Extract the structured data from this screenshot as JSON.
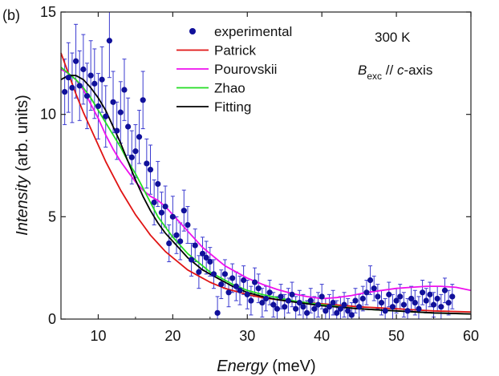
{
  "chart_data": {
    "type": "scatter",
    "panel_label": "(b)",
    "xlabel": {
      "name": "Energy",
      "unit": "(meV)"
    },
    "ylabel": {
      "name": "Intensity",
      "unit": "(arb. units)"
    },
    "xlim": [
      5,
      60
    ],
    "ylim": [
      0,
      15
    ],
    "xticks": [
      10,
      20,
      30,
      40,
      50,
      60
    ],
    "yticks": [
      0,
      5,
      10,
      15
    ],
    "annotations": {
      "temperature": "300 K",
      "field_symbol": "B",
      "field_sub": "exc",
      "field_parallel": " // ",
      "field_axis_italic": "c",
      "field_axis_rest": "-axis"
    },
    "legend": [
      {
        "label": "experimental",
        "kind": "marker",
        "color": "#10109a"
      },
      {
        "label": "Patrick",
        "kind": "line",
        "color": "#e01414"
      },
      {
        "label": "Pourovskii",
        "kind": "line",
        "color": "#ee11ee"
      },
      {
        "label": "Zhao",
        "kind": "line",
        "color": "#22dd22"
      },
      {
        "label": "Fitting",
        "kind": "line",
        "color": "#000000"
      }
    ],
    "experimental": {
      "color": "#10109a",
      "errbar_color": "#3a3ad0",
      "points": [
        [
          5.5,
          11.1,
          1.6
        ],
        [
          6.0,
          11.8,
          1.7
        ],
        [
          6.5,
          11.3,
          1.7
        ],
        [
          7.0,
          12.6,
          1.8
        ],
        [
          7.5,
          11.4,
          1.7
        ],
        [
          8.0,
          12.2,
          1.7
        ],
        [
          8.5,
          10.9,
          1.6
        ],
        [
          9.0,
          11.9,
          1.7
        ],
        [
          9.5,
          11.5,
          1.7
        ],
        [
          10.0,
          10.4,
          1.6
        ],
        [
          10.5,
          11.7,
          1.6
        ],
        [
          11.0,
          9.9,
          1.5
        ],
        [
          11.5,
          13.6,
          1.8
        ],
        [
          12.0,
          10.6,
          1.5
        ],
        [
          12.5,
          9.2,
          1.4
        ],
        [
          13.0,
          10.1,
          1.5
        ],
        [
          13.5,
          11.2,
          1.5
        ],
        [
          14.0,
          9.4,
          1.4
        ],
        [
          14.5,
          7.9,
          1.3
        ],
        [
          15.0,
          8.2,
          1.3
        ],
        [
          15.5,
          8.9,
          1.3
        ],
        [
          16.0,
          10.7,
          1.4
        ],
        [
          16.5,
          7.6,
          1.2
        ],
        [
          17.0,
          7.3,
          1.2
        ],
        [
          17.5,
          5.7,
          1.1
        ],
        [
          18.0,
          6.6,
          1.1
        ],
        [
          18.5,
          5.2,
          1.0
        ],
        [
          19.0,
          5.5,
          1.0
        ],
        [
          19.5,
          3.7,
          0.9
        ],
        [
          20.0,
          5.0,
          1.0
        ],
        [
          20.5,
          4.1,
          0.9
        ],
        [
          21.0,
          3.8,
          0.9
        ],
        [
          21.5,
          5.3,
          1.0
        ],
        [
          22.0,
          4.6,
          0.9
        ],
        [
          22.5,
          2.9,
          0.8
        ],
        [
          23.0,
          3.6,
          0.8
        ],
        [
          23.5,
          2.3,
          0.8
        ],
        [
          24.0,
          3.2,
          0.8
        ],
        [
          24.5,
          3.0,
          0.8
        ],
        [
          25.0,
          2.8,
          0.7
        ],
        [
          25.5,
          2.2,
          0.7
        ],
        [
          26.0,
          0.3,
          0.8
        ],
        [
          26.5,
          1.7,
          0.7
        ],
        [
          27.0,
          2.2,
          0.7
        ],
        [
          27.5,
          1.3,
          0.7
        ],
        [
          28.0,
          2.0,
          0.7
        ],
        [
          28.5,
          1.6,
          0.7
        ],
        [
          29.0,
          1.4,
          0.7
        ],
        [
          29.5,
          1.9,
          0.7
        ],
        [
          30.0,
          1.2,
          0.7
        ],
        [
          30.5,
          0.9,
          0.7
        ],
        [
          31.0,
          1.8,
          0.7
        ],
        [
          31.5,
          1.5,
          0.7
        ],
        [
          32.0,
          0.8,
          0.7
        ],
        [
          32.5,
          1.0,
          0.6
        ],
        [
          33.0,
          1.3,
          0.6
        ],
        [
          33.5,
          0.7,
          0.6
        ],
        [
          34.0,
          0.5,
          0.6
        ],
        [
          34.5,
          1.1,
          0.6
        ],
        [
          35.0,
          0.6,
          0.6
        ],
        [
          35.5,
          0.9,
          0.6
        ],
        [
          36.0,
          1.2,
          0.6
        ],
        [
          36.5,
          0.5,
          0.6
        ],
        [
          37.0,
          0.8,
          0.6
        ],
        [
          37.5,
          0.6,
          0.6
        ],
        [
          38.0,
          0.3,
          0.6
        ],
        [
          38.5,
          0.9,
          0.6
        ],
        [
          39.0,
          0.5,
          0.6
        ],
        [
          39.5,
          0.7,
          0.6
        ],
        [
          40.0,
          1.1,
          0.6
        ],
        [
          40.5,
          0.4,
          0.6
        ],
        [
          41.0,
          0.6,
          0.6
        ],
        [
          41.5,
          0.8,
          0.6
        ],
        [
          42.0,
          0.3,
          0.6
        ],
        [
          42.5,
          0.5,
          0.6
        ],
        [
          43.0,
          0.7,
          0.6
        ],
        [
          43.5,
          0.4,
          0.6
        ],
        [
          44.0,
          0.2,
          0.6
        ],
        [
          44.5,
          0.9,
          0.6
        ],
        [
          45.0,
          0.6,
          0.6
        ],
        [
          45.5,
          1.0,
          0.6
        ],
        [
          46.0,
          1.3,
          0.6
        ],
        [
          46.5,
          1.9,
          0.7
        ],
        [
          47.0,
          1.5,
          0.6
        ],
        [
          47.5,
          1.1,
          0.6
        ],
        [
          48.0,
          0.8,
          0.6
        ],
        [
          48.5,
          0.4,
          0.6
        ],
        [
          49.0,
          1.2,
          0.6
        ],
        [
          49.5,
          0.6,
          0.6
        ],
        [
          50.0,
          0.9,
          0.6
        ],
        [
          50.5,
          1.1,
          0.6
        ],
        [
          51.0,
          0.7,
          0.6
        ],
        [
          51.5,
          0.4,
          0.6
        ],
        [
          52.0,
          1.0,
          0.6
        ],
        [
          52.5,
          0.8,
          0.6
        ],
        [
          53.0,
          0.5,
          0.6
        ],
        [
          53.5,
          1.3,
          0.6
        ],
        [
          54.0,
          0.9,
          0.6
        ],
        [
          54.5,
          1.2,
          0.6
        ],
        [
          55.0,
          0.7,
          0.6
        ],
        [
          55.5,
          1.0,
          0.6
        ],
        [
          56.0,
          0.6,
          0.6
        ],
        [
          56.5,
          1.4,
          0.6
        ],
        [
          57.0,
          0.8,
          0.6
        ],
        [
          57.5,
          1.1,
          0.6
        ]
      ]
    },
    "series": [
      {
        "name": "Patrick",
        "color": "#e01414",
        "x": [
          5,
          6,
          7,
          8,
          9,
          10,
          11,
          12,
          13,
          14,
          15,
          16,
          17,
          18,
          19,
          20,
          21,
          22,
          23,
          24,
          25,
          26,
          27,
          28,
          29,
          30,
          32,
          34,
          36,
          38,
          40,
          45,
          50,
          55,
          60
        ],
        "y": [
          13.0,
          12.0,
          11.0,
          10.1,
          9.3,
          8.5,
          7.7,
          7.0,
          6.3,
          5.7,
          5.1,
          4.6,
          4.1,
          3.7,
          3.3,
          3.0,
          2.7,
          2.4,
          2.2,
          2.0,
          1.8,
          1.65,
          1.5,
          1.4,
          1.3,
          1.2,
          1.05,
          0.95,
          0.85,
          0.8,
          0.75,
          0.6,
          0.5,
          0.4,
          0.35
        ]
      },
      {
        "name": "Pourovskii",
        "color": "#ee11ee",
        "x": [
          5,
          6,
          7,
          8,
          9,
          10,
          11,
          12,
          13,
          14,
          15,
          16,
          17,
          18,
          19,
          20,
          21,
          22,
          23,
          24,
          25,
          26,
          27,
          28,
          29,
          30,
          32,
          34,
          36,
          38,
          40,
          42,
          44,
          46,
          48,
          50,
          52,
          54,
          56,
          58,
          60
        ],
        "y": [
          12.2,
          12.0,
          11.7,
          11.2,
          10.5,
          9.8,
          9.0,
          8.3,
          7.7,
          7.2,
          6.7,
          6.3,
          6.0,
          5.8,
          5.5,
          5.1,
          4.7,
          4.3,
          3.9,
          3.5,
          3.2,
          2.9,
          2.6,
          2.4,
          2.2,
          2.0,
          1.7,
          1.45,
          1.25,
          1.1,
          1.0,
          1.05,
          1.15,
          1.3,
          1.4,
          1.5,
          1.55,
          1.6,
          1.6,
          1.55,
          1.4
        ]
      },
      {
        "name": "Zhao",
        "color": "#22dd22",
        "x": [
          5,
          6,
          7,
          8,
          9,
          10,
          11,
          12,
          13,
          14,
          15,
          16,
          17,
          18,
          19,
          20,
          21,
          22,
          23,
          24,
          25,
          26,
          27,
          28,
          29,
          30,
          32,
          34,
          36,
          38,
          40,
          45,
          50,
          55,
          60
        ],
        "y": [
          12.3,
          12.0,
          11.7,
          11.3,
          10.8,
          10.2,
          9.6,
          9.0,
          8.4,
          7.7,
          7.1,
          6.4,
          5.7,
          5.0,
          4.5,
          4.0,
          3.6,
          3.2,
          2.9,
          2.6,
          2.3,
          2.1,
          1.9,
          1.7,
          1.55,
          1.4,
          1.2,
          1.05,
          0.9,
          0.8,
          0.7,
          0.5,
          0.4,
          0.3,
          0.25
        ]
      },
      {
        "name": "Fitting",
        "color": "#000000",
        "x": [
          5,
          6,
          7,
          8,
          9,
          10,
          11,
          12,
          13,
          14,
          15,
          16,
          17,
          18,
          19,
          20,
          21,
          22,
          23,
          24,
          25,
          26,
          27,
          28,
          29,
          30,
          32,
          34,
          36,
          38,
          40,
          45,
          50,
          55,
          60
        ],
        "y": [
          11.7,
          11.9,
          11.9,
          11.7,
          11.3,
          10.8,
          10.2,
          9.4,
          8.6,
          7.7,
          6.8,
          6.0,
          5.3,
          4.7,
          4.2,
          3.8,
          3.4,
          3.0,
          2.7,
          2.4,
          2.2,
          2.0,
          1.8,
          1.6,
          1.45,
          1.3,
          1.1,
          0.95,
          0.85,
          0.75,
          0.65,
          0.5,
          0.4,
          0.3,
          0.25
        ]
      }
    ]
  }
}
